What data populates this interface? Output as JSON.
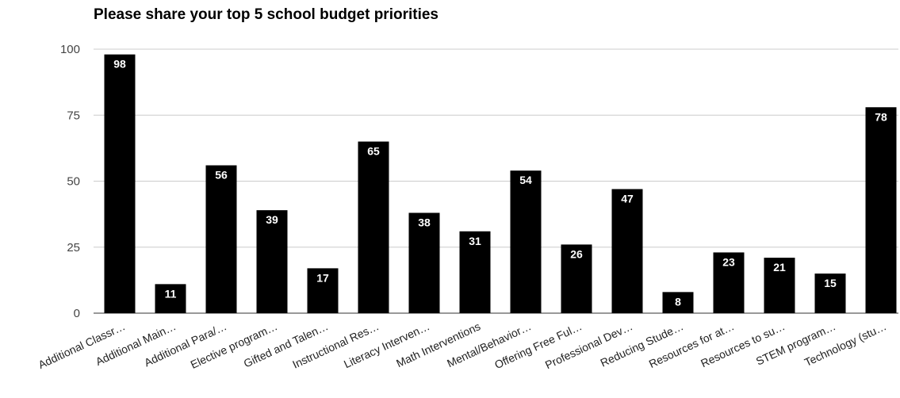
{
  "chart_data": {
    "type": "bar",
    "title": "Please share your top 5 school budget priorities",
    "categories": [
      "Additional Classr…",
      "Additional Main…",
      "Additional Para/…",
      "Elective program…",
      "Gifted and Talen…",
      "Instructional Res…",
      "Literacy Interven…",
      "Math Interventions",
      "Mental/Behavior…",
      "Offering Free Ful…",
      "Professional Dev…",
      "Reducing Stude…",
      "Resources for at…",
      "Resources to su…",
      "STEM program…",
      "Technology (stu…"
    ],
    "values": [
      98,
      11,
      56,
      39,
      17,
      65,
      38,
      31,
      54,
      26,
      47,
      8,
      23,
      21,
      15,
      78
    ],
    "ylim": [
      0,
      100
    ],
    "yticks": [
      "0",
      "25",
      "50",
      "75",
      "100"
    ],
    "xlabel": "",
    "ylabel": "",
    "grid": true,
    "bar_color": "#000000",
    "data_label_color": "#ffffff",
    "gridline_color": "#cccccc"
  }
}
